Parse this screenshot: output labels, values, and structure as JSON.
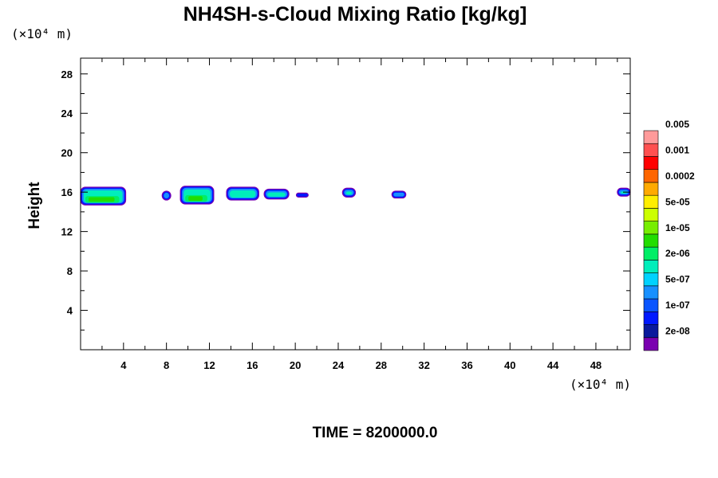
{
  "chart_data": {
    "type": "contour",
    "title": "NH4SH-s-Cloud Mixing Ratio [kg/kg]",
    "ylabel": "Height",
    "x_unit": "(×10⁴ m)",
    "y_unit": "(×10⁴ m)",
    "xlim": [
      0,
      51.2
    ],
    "ylim": [
      0,
      29.6
    ],
    "x_ticks": [
      4,
      8,
      12,
      16,
      20,
      24,
      28,
      32,
      36,
      40,
      44,
      48
    ],
    "y_ticks": [
      4,
      8,
      12,
      16,
      20,
      24,
      28
    ],
    "time_label": "TIME = 8200000.0",
    "colorbar": {
      "colors": [
        "#7a00b0",
        "#0a1a9c",
        "#0018ff",
        "#0a55ff",
        "#1890ff",
        "#00d2ff",
        "#00eebb",
        "#00ee66",
        "#22dd00",
        "#77ee00",
        "#ccff00",
        "#ffee00",
        "#ffaa00",
        "#ff6600",
        "#ff0000",
        "#ff5050",
        "#ff9a9a"
      ],
      "labels": [
        "2e-08",
        "1e-07",
        "5e-07",
        "2e-06",
        "1e-05",
        "5e-05",
        "0.0002",
        "0.001",
        "0.005"
      ]
    },
    "cloud_patches": [
      {
        "x0": 0.0,
        "x1": 4.2,
        "y0": 14.7,
        "y1": 16.5,
        "core": true
      },
      {
        "x0": 7.6,
        "x1": 8.4,
        "y0": 15.2,
        "y1": 16.1,
        "core": false
      },
      {
        "x0": 9.3,
        "x1": 12.4,
        "y0": 14.8,
        "y1": 16.6,
        "core": true
      },
      {
        "x0": 13.6,
        "x1": 16.6,
        "y0": 15.2,
        "y1": 16.5,
        "core": false
      },
      {
        "x0": 17.1,
        "x1": 19.4,
        "y0": 15.3,
        "y1": 16.3,
        "core": false
      },
      {
        "x0": 20.1,
        "x1": 21.2,
        "y0": 15.5,
        "y1": 15.9,
        "core": false
      },
      {
        "x0": 24.4,
        "x1": 25.6,
        "y0": 15.5,
        "y1": 16.4,
        "core": false
      },
      {
        "x0": 29.0,
        "x1": 30.3,
        "y0": 15.4,
        "y1": 16.1,
        "core": false
      },
      {
        "x0": 50.0,
        "x1": 51.2,
        "y0": 15.6,
        "y1": 16.4,
        "core": false
      }
    ]
  }
}
